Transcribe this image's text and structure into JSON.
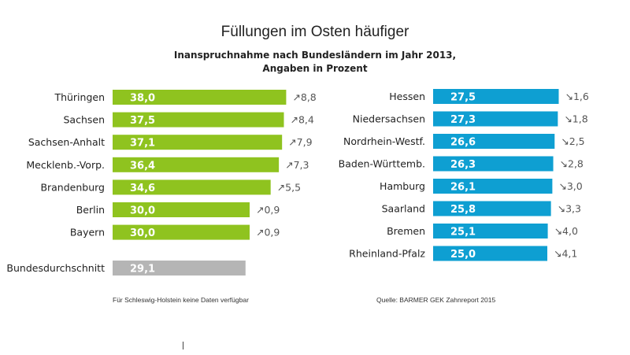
{
  "chart_data": {
    "type": "bar",
    "orientation": "horizontal",
    "title": "Füllungen im Osten häufiger",
    "subtitle_lines": [
      "Inanspruchnahme nach Bundesländern im Jahr 2013,",
      "Angaben in Prozent"
    ],
    "xlim": [
      0,
      40
    ],
    "grid": false,
    "groups": [
      {
        "color": "#8fc31f",
        "delta_direction": "up",
        "categories": [
          "Thüringen",
          "Sachsen",
          "Sachsen-Anhalt",
          "Mecklenb.-Vorp.",
          "Brandenburg",
          "Berlin",
          "Bayern"
        ],
        "values": [
          38.0,
          37.5,
          37.1,
          36.4,
          34.6,
          30.0,
          30.0
        ],
        "labels": [
          "38,0",
          "37,5",
          "37,1",
          "36,4",
          "34,6",
          "30,0",
          "30,0"
        ],
        "deltas": [
          "8,8",
          "8,4",
          "7,9",
          "7,3",
          "5,5",
          "0,9",
          "0,9"
        ]
      },
      {
        "color": "#0e9fd2",
        "delta_direction": "down",
        "categories": [
          "Hessen",
          "Niedersachsen",
          "Nordrhein-Westf.",
          "Baden-Württemb.",
          "Hamburg",
          "Saarland",
          "Bremen",
          "Rheinland-Pfalz"
        ],
        "values": [
          27.5,
          27.3,
          26.6,
          26.3,
          26.1,
          25.8,
          25.1,
          25.0
        ],
        "labels": [
          "27,5",
          "27,3",
          "26,6",
          "26,3",
          "26,1",
          "25,8",
          "25,1",
          "25,0"
        ],
        "deltas": [
          "1,6",
          "1,8",
          "2,5",
          "2,8",
          "3,0",
          "3,3",
          "4,0",
          "4,1"
        ]
      }
    ],
    "average": {
      "category": "Bundesdurchschnitt",
      "value": 29.1,
      "label": "29,1",
      "color": "#b5b5b5"
    },
    "notes": {
      "left": "Für Schleswig-Holstein keine Daten verfügbar",
      "source": "Quelle: BARMER GEK Zahnreport 2015"
    }
  }
}
